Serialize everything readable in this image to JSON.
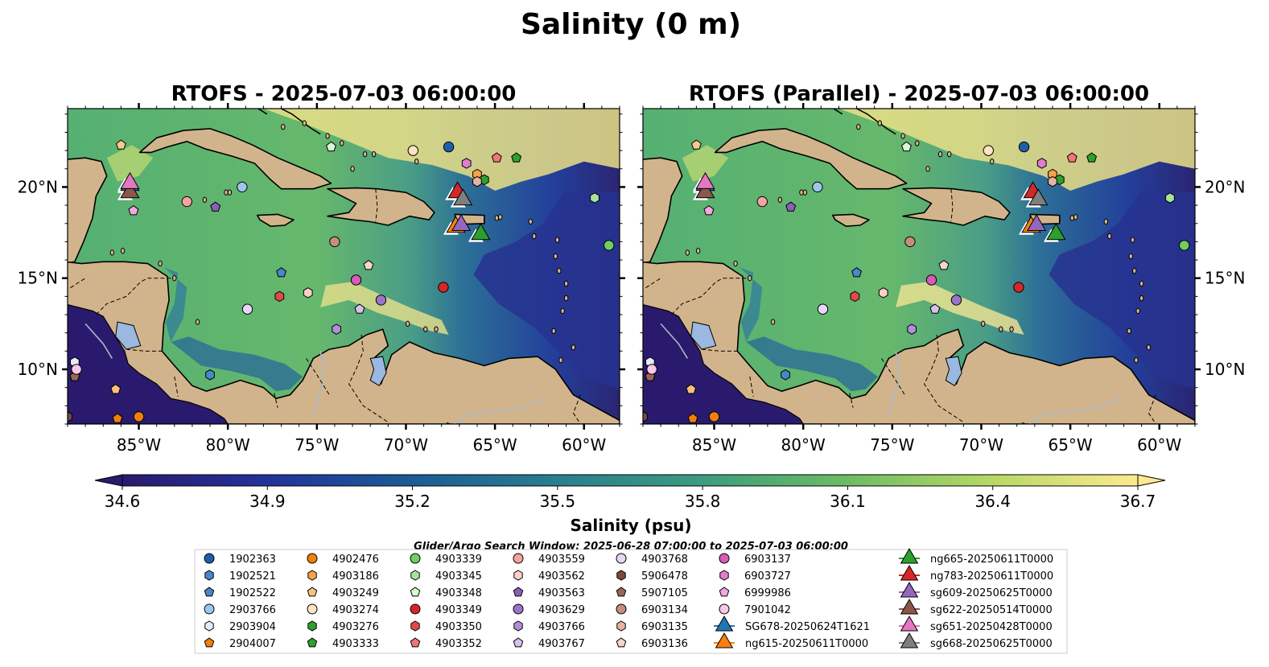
{
  "figure": {
    "suptitle": "Salinity (0 m)",
    "search_window": "Glider/Argo Search Window: 2025-06-28 07:00:00 to 2025-07-03 06:00:00"
  },
  "colors": {
    "land": "#d2b48c",
    "lakes": "#9ab8e0",
    "rivers": "#a9b9c9",
    "low_salinity": "#2a1a6e",
    "high_salinity": "#fdea8f"
  },
  "chart_data": {
    "type": "map",
    "variable": "Salinity",
    "depth": "0 m",
    "panels": [
      {
        "title": "RTOFS - 2025-07-03 06:00:00",
        "model": "RTOFS"
      },
      {
        "title": "RTOFS (Parallel) - 2025-07-03 06:00:00",
        "model": "RTOFS (Parallel)"
      }
    ],
    "extent": {
      "lon": [
        -89,
        -58
      ],
      "lat": [
        7,
        24.3
      ]
    },
    "lon_ticks": [
      -85,
      -80,
      -75,
      -70,
      -65,
      -60
    ],
    "lon_tick_labels": [
      "85°W",
      "80°W",
      "75°W",
      "70°W",
      "65°W",
      "60°W"
    ],
    "lat_ticks": [
      10,
      15,
      20
    ],
    "lat_tick_labels": [
      "10°N",
      "15°N",
      "20°N"
    ],
    "colorbar": {
      "label": "Salinity (psu)",
      "vmin": 34.6,
      "vmax": 36.7,
      "extend": "both",
      "ticks": [
        34.6,
        34.9,
        35.2,
        35.5,
        35.8,
        36.1,
        36.4,
        36.7
      ],
      "tick_labels": [
        "34.6",
        "34.9",
        "35.2",
        "35.5",
        "35.8",
        "36.1",
        "36.4",
        "36.7"
      ],
      "colormap": "haline"
    },
    "argo_floats": [
      {
        "id": "1902363",
        "lon": -67.6,
        "lat": 22.2,
        "marker": "circle",
        "color": "#1f5fa8"
      },
      {
        "id": "1902521",
        "lon": -81.0,
        "lat": 9.7,
        "marker": "hexagon",
        "color": "#4a86c8"
      },
      {
        "id": "1902522",
        "lon": -77.0,
        "lat": 15.3,
        "marker": "pentagon",
        "color": "#4a86c8"
      },
      {
        "id": "2903766",
        "lon": -79.2,
        "lat": 20.0,
        "marker": "circle",
        "color": "#9cc6ec"
      },
      {
        "id": "2903904",
        "lon": -88.6,
        "lat": 10.4,
        "marker": "hexagon",
        "color": "#e0ecfa"
      },
      {
        "id": "2904007",
        "lon": -86.2,
        "lat": 7.3,
        "marker": "pentagon",
        "color": "#f07f0c"
      },
      {
        "id": "4902476",
        "lon": -85.0,
        "lat": 7.4,
        "marker": "circle",
        "color": "#f07f0c"
      },
      {
        "id": "4903186",
        "lon": -66.0,
        "lat": 20.7,
        "marker": "hexagon",
        "color": "#f7a24a"
      },
      {
        "id": "4903249",
        "lon": -86.3,
        "lat": 8.9,
        "marker": "pentagon",
        "color": "#fbbf7e"
      },
      {
        "id": "4903274",
        "lon": -69.6,
        "lat": 22.0,
        "marker": "circle",
        "color": "#ffe3c4"
      },
      {
        "id": "4903276",
        "lon": -65.6,
        "lat": 20.4,
        "marker": "hexagon",
        "color": "#2ea02c"
      },
      {
        "id": "4903333",
        "lon": -63.8,
        "lat": 21.6,
        "marker": "pentagon",
        "color": "#2ea02c"
      },
      {
        "id": "4903339",
        "lon": -58.6,
        "lat": 16.8,
        "marker": "circle",
        "color": "#6fcf5f"
      },
      {
        "id": "4903345",
        "lon": -59.4,
        "lat": 19.4,
        "marker": "hexagon",
        "color": "#a6e39a"
      },
      {
        "id": "4903348",
        "lon": -74.2,
        "lat": 22.2,
        "marker": "pentagon",
        "color": "#d9f7d2"
      },
      {
        "id": "4903349",
        "lon": -67.9,
        "lat": 14.5,
        "marker": "circle",
        "color": "#d62728"
      },
      {
        "id": "4903350",
        "lon": -77.1,
        "lat": 14.0,
        "marker": "hexagon",
        "color": "#e6484a"
      },
      {
        "id": "4903352",
        "lon": -64.9,
        "lat": 21.6,
        "marker": "pentagon",
        "color": "#f0767a"
      },
      {
        "id": "4903559",
        "lon": -82.3,
        "lat": 19.2,
        "marker": "circle",
        "color": "#f7a3a1"
      },
      {
        "id": "4903562",
        "lon": -75.5,
        "lat": 14.2,
        "marker": "hexagon",
        "color": "#fcd0c8"
      },
      {
        "id": "4903563",
        "lon": -80.7,
        "lat": 18.9,
        "marker": "pentagon",
        "color": "#8a5fb8"
      },
      {
        "id": "4903629",
        "lon": -71.4,
        "lat": 13.8,
        "marker": "circle",
        "color": "#9a74c8"
      },
      {
        "id": "4903766",
        "lon": -73.9,
        "lat": 12.2,
        "marker": "hexagon",
        "color": "#b08fd8"
      },
      {
        "id": "4903767",
        "lon": -72.6,
        "lat": 13.3,
        "marker": "pentagon",
        "color": "#d6c1ef"
      },
      {
        "id": "4903768",
        "lon": -78.9,
        "lat": 13.3,
        "marker": "circle",
        "color": "#e6d6f7"
      },
      {
        "id": "5906478",
        "lon": -89.0,
        "lat": 7.4,
        "marker": "hexagon",
        "color": "#7b4a3c"
      },
      {
        "id": "5907105",
        "lon": -88.6,
        "lat": 9.6,
        "marker": "pentagon",
        "color": "#9a6655"
      },
      {
        "id": "6903134",
        "lon": -74.0,
        "lat": 17.0,
        "marker": "circle",
        "color": "#c48e7e"
      },
      {
        "id": "6903135",
        "lon": -66.0,
        "lat": 20.3,
        "marker": "hexagon",
        "color": "#e6b2a2"
      },
      {
        "id": "6903136",
        "lon": -72.1,
        "lat": 15.7,
        "marker": "pentagon",
        "color": "#f4d6ca"
      },
      {
        "id": "6903137",
        "lon": -72.8,
        "lat": 14.9,
        "marker": "circle",
        "color": "#d65cb8"
      },
      {
        "id": "6903727",
        "lon": -66.6,
        "lat": 21.3,
        "marker": "hexagon",
        "color": "#e37ccb"
      },
      {
        "id": "6999986",
        "lon": -85.3,
        "lat": 18.7,
        "marker": "pentagon",
        "color": "#f2a9df"
      },
      {
        "id": "7901042",
        "lon": -88.5,
        "lat": 10.0,
        "marker": "circle",
        "color": "#f8c8e8"
      },
      {
        "id": "",
        "lon": -86.0,
        "lat": 22.3,
        "marker": "pentagon",
        "color": "#f8c88a"
      }
    ],
    "gliders": [
      {
        "id": "SG678-20250624T1621",
        "lon": -85.5,
        "lat": 20.1,
        "color": "#1f77b4"
      },
      {
        "id": "ng615-20250611T0000",
        "lon": -67.2,
        "lat": 17.8,
        "color": "#ff7f0e"
      },
      {
        "id": "ng665-20250611T0000",
        "lon": -65.8,
        "lat": 17.4,
        "color": "#2ca02c"
      },
      {
        "id": "ng783-20250611T0000",
        "lon": -67.1,
        "lat": 19.7,
        "color": "#d62728"
      },
      {
        "id": "sg609-20250625T0000",
        "lon": -66.9,
        "lat": 17.9,
        "color": "#9467bd"
      },
      {
        "id": "sg622-20250514T0000",
        "lon": -85.5,
        "lat": 19.7,
        "color": "#8c564b"
      },
      {
        "id": "sg651-20250428T0000",
        "lon": -85.5,
        "lat": 20.2,
        "color": "#e377c2"
      },
      {
        "id": "sg668-20250625T0000",
        "lon": -66.8,
        "lat": 19.3,
        "color": "#7f7f7f"
      }
    ]
  },
  "legend": {
    "columns": [
      [
        {
          "label": "1902363",
          "marker": "circle",
          "color": "#1f5fa8"
        },
        {
          "label": "1902521",
          "marker": "hexagon",
          "color": "#4a86c8"
        },
        {
          "label": "1902522",
          "marker": "pentagon",
          "color": "#4a86c8"
        },
        {
          "label": "2903766",
          "marker": "circle",
          "color": "#9cc6ec"
        },
        {
          "label": "2903904",
          "marker": "hexagon",
          "color": "#e0ecfa"
        },
        {
          "label": "2904007",
          "marker": "pentagon",
          "color": "#f07f0c"
        }
      ],
      [
        {
          "label": "4902476",
          "marker": "circle",
          "color": "#f07f0c"
        },
        {
          "label": "4903186",
          "marker": "hexagon",
          "color": "#f7a24a"
        },
        {
          "label": "4903249",
          "marker": "pentagon",
          "color": "#fbbf7e"
        },
        {
          "label": "4903274",
          "marker": "circle",
          "color": "#ffe3c4"
        },
        {
          "label": "4903276",
          "marker": "hexagon",
          "color": "#2ea02c"
        },
        {
          "label": "4903333",
          "marker": "pentagon",
          "color": "#2ea02c"
        }
      ],
      [
        {
          "label": "4903339",
          "marker": "circle",
          "color": "#6fcf5f"
        },
        {
          "label": "4903345",
          "marker": "hexagon",
          "color": "#a6e39a"
        },
        {
          "label": "4903348",
          "marker": "pentagon",
          "color": "#d9f7d2"
        },
        {
          "label": "4903349",
          "marker": "circle",
          "color": "#d62728"
        },
        {
          "label": "4903350",
          "marker": "hexagon",
          "color": "#e6484a"
        },
        {
          "label": "4903352",
          "marker": "pentagon",
          "color": "#f0767a"
        }
      ],
      [
        {
          "label": "4903559",
          "marker": "circle",
          "color": "#f7a3a1"
        },
        {
          "label": "4903562",
          "marker": "hexagon",
          "color": "#fcd0c8"
        },
        {
          "label": "4903563",
          "marker": "pentagon",
          "color": "#8a5fb8"
        },
        {
          "label": "4903629",
          "marker": "circle",
          "color": "#9a74c8"
        },
        {
          "label": "4903766",
          "marker": "hexagon",
          "color": "#b08fd8"
        },
        {
          "label": "4903767",
          "marker": "pentagon",
          "color": "#d6c1ef"
        }
      ],
      [
        {
          "label": "4903768",
          "marker": "circle",
          "color": "#e6d6f7"
        },
        {
          "label": "5906478",
          "marker": "hexagon",
          "color": "#7b4a3c"
        },
        {
          "label": "5907105",
          "marker": "pentagon",
          "color": "#9a6655"
        },
        {
          "label": "6903134",
          "marker": "circle",
          "color": "#c48e7e"
        },
        {
          "label": "6903135",
          "marker": "hexagon",
          "color": "#e6b2a2"
        },
        {
          "label": "6903136",
          "marker": "pentagon",
          "color": "#f4d6ca"
        }
      ],
      [
        {
          "label": "6903137",
          "marker": "circle",
          "color": "#d65cb8"
        },
        {
          "label": "6903727",
          "marker": "hexagon",
          "color": "#e37ccb"
        },
        {
          "label": "6999986",
          "marker": "pentagon",
          "color": "#f2a9df"
        },
        {
          "label": "7901042",
          "marker": "circle",
          "color": "#f8c8e8"
        },
        {
          "label": "SG678-20250624T1621",
          "marker": "triangle",
          "color": "#1f77b4"
        },
        {
          "label": "ng615-20250611T0000",
          "marker": "triangle",
          "color": "#ff7f0e"
        }
      ],
      [
        {
          "label": "ng665-20250611T0000",
          "marker": "triangle",
          "color": "#2ca02c"
        },
        {
          "label": "ng783-20250611T0000",
          "marker": "triangle",
          "color": "#d62728"
        },
        {
          "label": "sg609-20250625T0000",
          "marker": "triangle",
          "color": "#9467bd"
        },
        {
          "label": "sg622-20250514T0000",
          "marker": "triangle",
          "color": "#8c564b"
        },
        {
          "label": "sg651-20250428T0000",
          "marker": "triangle",
          "color": "#e377c2"
        },
        {
          "label": "sg668-20250625T0000",
          "marker": "triangle",
          "color": "#7f7f7f"
        }
      ]
    ]
  }
}
